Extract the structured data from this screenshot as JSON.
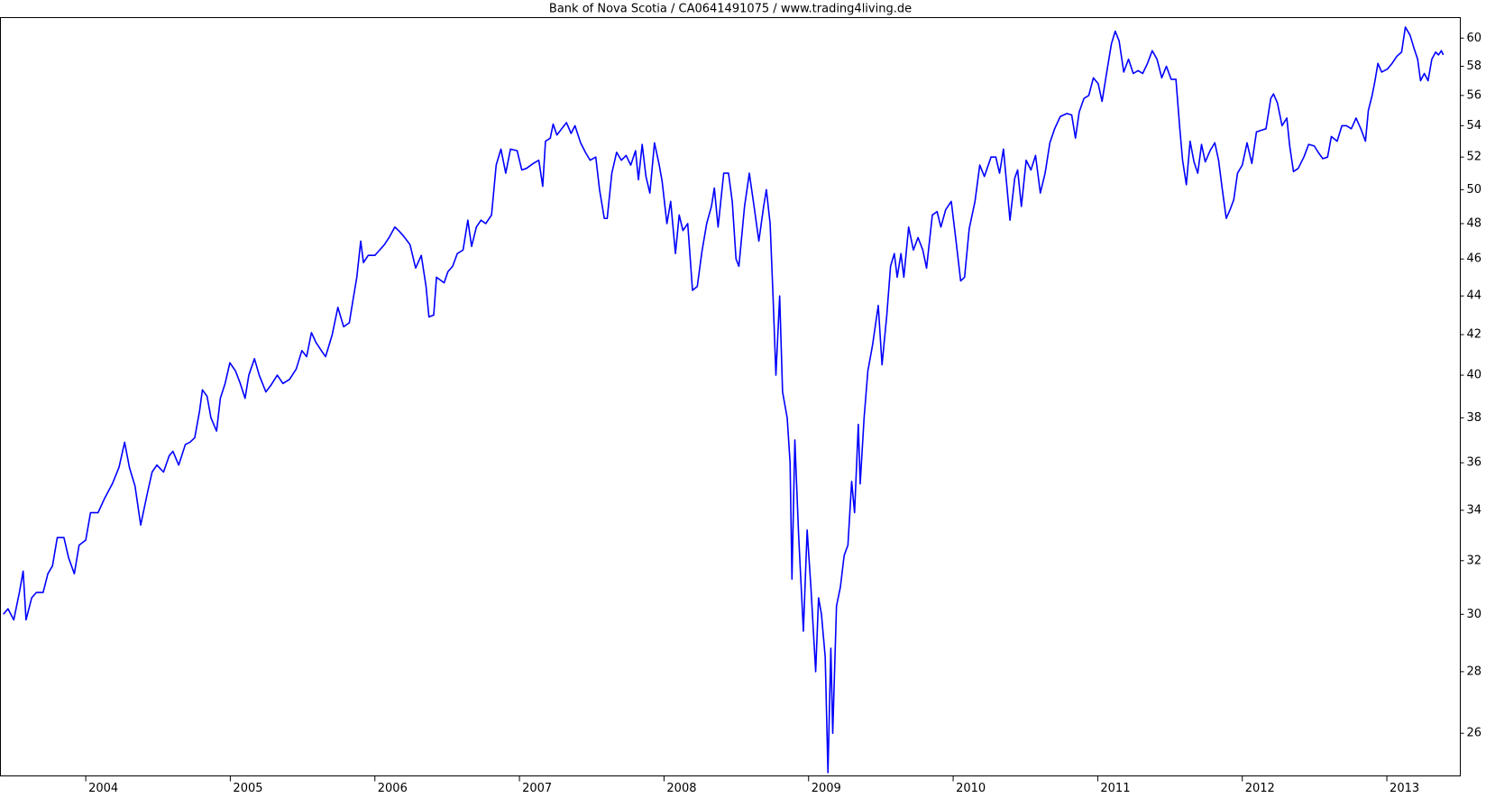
{
  "chart_data": {
    "type": "line",
    "title": "Bank of Nova Scotia / CA0641491075 / www.trading4living.de",
    "log_y": true,
    "grid": false,
    "xlim": [
      2003.41,
      2013.508
    ],
    "xticks": [
      2004,
      2005,
      2006,
      2007,
      2008,
      2009,
      2010,
      2011,
      2012,
      2013
    ],
    "ylim": [
      24.7,
      61.5
    ],
    "yticks": [
      26,
      28,
      30,
      32,
      34,
      36,
      38,
      40,
      42,
      44,
      46,
      48,
      50,
      52,
      54,
      56,
      58,
      60
    ],
    "x": [
      2003.43,
      2003.462,
      2003.502,
      2003.541,
      2003.567,
      2003.587,
      2003.626,
      2003.659,
      2003.705,
      2003.738,
      2003.77,
      2003.803,
      2003.849,
      2003.882,
      2003.921,
      2003.954,
      2004.0,
      2004.033,
      2004.085,
      2004.131,
      2004.184,
      2004.23,
      2004.269,
      2004.302,
      2004.341,
      2004.38,
      2004.426,
      2004.459,
      2004.492,
      2004.538,
      2004.577,
      2004.603,
      2004.643,
      2004.689,
      2004.721,
      2004.754,
      2004.787,
      2004.807,
      2004.839,
      2004.866,
      2004.905,
      2004.931,
      2004.964,
      2004.997,
      2005.036,
      2005.069,
      2005.102,
      2005.128,
      2005.167,
      2005.2,
      2005.246,
      2005.279,
      2005.325,
      2005.364,
      2005.41,
      2005.456,
      2005.495,
      2005.528,
      2005.561,
      2005.593,
      2005.639,
      2005.659,
      2005.705,
      2005.744,
      2005.784,
      2005.823,
      2005.849,
      2005.875,
      2005.902,
      2005.921,
      2005.954,
      2006.0,
      2006.033,
      2006.066,
      2006.098,
      2006.138,
      2006.164,
      2006.197,
      2006.243,
      2006.282,
      2006.321,
      2006.354,
      2006.374,
      2006.407,
      2006.426,
      2006.479,
      2006.505,
      2006.538,
      2006.57,
      2006.61,
      2006.643,
      2006.669,
      2006.702,
      2006.734,
      2006.767,
      2006.807,
      2006.839,
      2006.872,
      2006.905,
      2006.938,
      2006.984,
      2007.016,
      2007.049,
      2007.095,
      2007.134,
      2007.161,
      2007.18,
      2007.213,
      2007.233,
      2007.259,
      2007.292,
      2007.325,
      2007.357,
      2007.384,
      2007.423,
      2007.456,
      2007.489,
      2007.528,
      2007.554,
      2007.587,
      2007.607,
      2007.639,
      2007.672,
      2007.705,
      2007.738,
      2007.77,
      2007.803,
      2007.823,
      2007.849,
      2007.875,
      2007.902,
      2007.934,
      2007.967,
      2007.987,
      2008.02,
      2008.046,
      2008.079,
      2008.105,
      2008.131,
      2008.164,
      2008.197,
      2008.23,
      2008.262,
      2008.295,
      2008.328,
      2008.348,
      2008.374,
      2008.413,
      2008.446,
      2008.472,
      2008.498,
      2008.518,
      2008.557,
      2008.59,
      2008.623,
      2008.656,
      2008.689,
      2008.708,
      2008.734,
      2008.754,
      2008.774,
      2008.8,
      2008.82,
      2008.852,
      2008.872,
      2008.885,
      2008.905,
      2008.931,
      2008.964,
      2008.99,
      2009.016,
      2009.049,
      2009.069,
      2009.089,
      2009.115,
      2009.134,
      2009.154,
      2009.167,
      2009.193,
      2009.22,
      2009.246,
      2009.272,
      2009.298,
      2009.318,
      2009.344,
      2009.357,
      2009.384,
      2009.41,
      2009.443,
      2009.482,
      2009.508,
      2009.541,
      2009.567,
      2009.593,
      2009.613,
      2009.639,
      2009.659,
      2009.692,
      2009.725,
      2009.757,
      2009.79,
      2009.816,
      2009.856,
      2009.889,
      2009.915,
      2009.948,
      2009.987,
      2010.02,
      2010.052,
      2010.079,
      2010.111,
      2010.151,
      2010.184,
      2010.216,
      2010.262,
      2010.295,
      2010.321,
      2010.348,
      2010.393,
      2010.426,
      2010.446,
      2010.472,
      2010.505,
      2010.538,
      2010.57,
      2010.603,
      2010.636,
      2010.669,
      2010.702,
      2010.741,
      2010.787,
      2010.82,
      2010.846,
      2010.872,
      2010.905,
      2010.938,
      2010.97,
      2011.003,
      2011.03,
      2011.069,
      2011.095,
      2011.121,
      2011.148,
      2011.18,
      2011.213,
      2011.246,
      2011.279,
      2011.311,
      2011.344,
      2011.377,
      2011.41,
      2011.443,
      2011.475,
      2011.508,
      2011.541,
      2011.567,
      2011.587,
      2011.613,
      2011.639,
      2011.666,
      2011.692,
      2011.718,
      2011.744,
      2011.777,
      2011.81,
      2011.836,
      2011.862,
      2011.889,
      2011.915,
      2011.941,
      2011.967,
      2012.0,
      2012.033,
      2012.066,
      2012.098,
      2012.131,
      2012.164,
      2012.197,
      2012.216,
      2012.243,
      2012.275,
      2012.308,
      2012.328,
      2012.354,
      2012.387,
      2012.426,
      2012.459,
      2012.498,
      2012.525,
      2012.557,
      2012.59,
      2012.616,
      2012.656,
      2012.689,
      2012.721,
      2012.754,
      2012.787,
      2012.82,
      2012.852,
      2012.872,
      2012.898,
      2012.918,
      2012.938,
      2012.964,
      2013.003,
      2013.036,
      2013.069,
      2013.102,
      2013.128,
      2013.161,
      2013.187,
      2013.213,
      2013.233,
      2013.259,
      2013.285,
      2013.311,
      2013.338,
      2013.357,
      2013.377,
      2013.39
    ],
    "series": [
      {
        "color": "#0000ff",
        "values": [
          30.0,
          30.2,
          29.8,
          30.8,
          31.6,
          29.8,
          30.6,
          30.8,
          30.8,
          31.5,
          31.8,
          32.9,
          32.9,
          32.1,
          31.5,
          32.6,
          32.8,
          33.9,
          33.9,
          34.5,
          35.1,
          35.8,
          36.9,
          35.8,
          35.0,
          33.4,
          34.7,
          35.6,
          35.9,
          35.6,
          36.3,
          36.5,
          35.9,
          36.8,
          36.9,
          37.1,
          38.3,
          39.3,
          39.0,
          38.0,
          37.4,
          38.9,
          39.6,
          40.6,
          40.2,
          39.6,
          38.9,
          40.0,
          40.8,
          40.0,
          39.2,
          39.5,
          40.0,
          39.6,
          39.8,
          40.3,
          41.2,
          40.9,
          42.1,
          41.6,
          41.1,
          40.9,
          42.0,
          43.4,
          42.4,
          42.6,
          43.8,
          45.0,
          47.0,
          45.8,
          46.2,
          46.2,
          46.5,
          46.8,
          47.2,
          47.8,
          47.6,
          47.3,
          46.8,
          45.5,
          46.2,
          44.5,
          42.9,
          43.0,
          45.0,
          44.7,
          45.3,
          45.6,
          46.3,
          46.5,
          48.2,
          46.7,
          47.8,
          48.2,
          48.0,
          48.5,
          51.5,
          52.5,
          51.0,
          52.5,
          52.4,
          51.2,
          51.3,
          51.6,
          51.8,
          50.2,
          53.0,
          53.2,
          54.1,
          53.4,
          53.8,
          54.2,
          53.5,
          54.0,
          52.9,
          52.3,
          51.8,
          52.0,
          50.0,
          48.3,
          48.3,
          51.0,
          52.3,
          51.8,
          52.1,
          51.5,
          52.4,
          50.6,
          52.8,
          50.8,
          49.8,
          52.9,
          51.5,
          50.5,
          48.0,
          49.3,
          46.3,
          48.5,
          47.6,
          48.0,
          44.3,
          44.5,
          46.4,
          48.0,
          49.0,
          50.1,
          47.8,
          51.0,
          51.0,
          49.3,
          46.0,
          45.6,
          49.0,
          51.0,
          49.0,
          47.0,
          49.0,
          50.0,
          48.0,
          44.0,
          40.0,
          44.0,
          39.2,
          38.0,
          36.0,
          31.3,
          37.0,
          33.0,
          29.4,
          33.2,
          31.0,
          28.0,
          30.6,
          30.0,
          28.5,
          24.8,
          28.8,
          26.0,
          30.3,
          31.0,
          32.2,
          32.6,
          35.2,
          33.9,
          37.7,
          35.1,
          38.0,
          40.2,
          41.5,
          43.5,
          40.5,
          43.0,
          45.6,
          46.3,
          45.0,
          46.3,
          45.0,
          47.8,
          46.5,
          47.2,
          46.5,
          45.5,
          48.5,
          48.7,
          47.8,
          48.8,
          49.3,
          47.0,
          44.8,
          45.0,
          47.7,
          49.3,
          51.5,
          50.8,
          52.0,
          52.0,
          51.0,
          52.5,
          48.2,
          50.7,
          51.2,
          49.0,
          51.8,
          51.2,
          52.1,
          49.8,
          51.0,
          52.9,
          53.8,
          54.6,
          54.8,
          54.7,
          53.2,
          54.9,
          55.8,
          56.0,
          57.2,
          56.8,
          55.6,
          58.0,
          59.6,
          60.5,
          59.8,
          57.6,
          58.5,
          57.5,
          57.7,
          57.5,
          58.2,
          59.1,
          58.5,
          57.2,
          58.0,
          57.1,
          57.1,
          53.9,
          51.8,
          50.3,
          53.0,
          51.7,
          51.0,
          52.8,
          51.7,
          52.4,
          52.9,
          51.8,
          50.0,
          48.3,
          48.8,
          49.4,
          51.0,
          51.5,
          52.9,
          51.6,
          53.6,
          53.7,
          53.8,
          55.8,
          56.1,
          55.5,
          54.0,
          54.5,
          52.7,
          51.1,
          51.3,
          52.0,
          52.8,
          52.7,
          52.3,
          51.9,
          52.0,
          53.3,
          53.0,
          54.0,
          54.0,
          53.8,
          54.5,
          53.8,
          53.0,
          55.0,
          56.0,
          57.0,
          58.2,
          57.6,
          57.8,
          58.2,
          58.7,
          59.0,
          60.8,
          60.2,
          59.3,
          58.5,
          57.0,
          57.5,
          57.0,
          58.5,
          59.0,
          58.8,
          59.1,
          58.8
        ]
      }
    ]
  }
}
